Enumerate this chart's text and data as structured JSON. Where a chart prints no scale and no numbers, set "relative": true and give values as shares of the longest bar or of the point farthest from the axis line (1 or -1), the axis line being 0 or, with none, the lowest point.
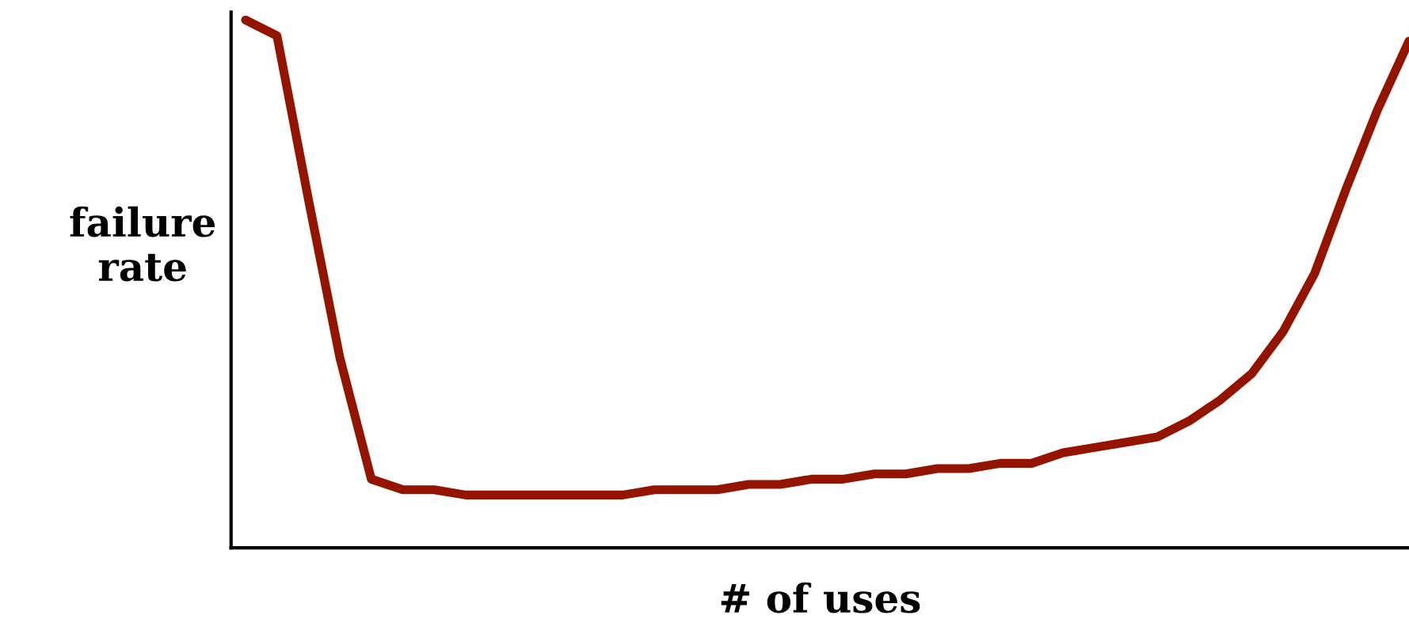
{
  "chart_data": {
    "type": "line",
    "relative": true,
    "xlabel": "# of uses",
    "ylabel": "failure\nrate",
    "categories": [
      null,
      null,
      null,
      null,
      null,
      null,
      null,
      null,
      null,
      null,
      null,
      null,
      null,
      null,
      null,
      null,
      null,
      null,
      null,
      null,
      null,
      null,
      null,
      null,
      null,
      null,
      null,
      null,
      null,
      null,
      null,
      null,
      null,
      null,
      null,
      null,
      null,
      null
    ],
    "series": [
      {
        "color": "#931500",
        "values": [
          1,
          0.97,
          0.66,
          0.36,
          0.13,
          0.11,
          0.11,
          0.1,
          0.1,
          0.1,
          0.1,
          0.1,
          0.1,
          0.11,
          0.11,
          0.11,
          0.12,
          0.12,
          0.13,
          0.13,
          0.14,
          0.14,
          0.15,
          0.15,
          0.16,
          0.16,
          0.18,
          0.19,
          0.2,
          0.21,
          0.24,
          0.28,
          0.33,
          0.41,
          0.52,
          0.68,
          0.83,
          0.96
        ]
      }
    ]
  }
}
